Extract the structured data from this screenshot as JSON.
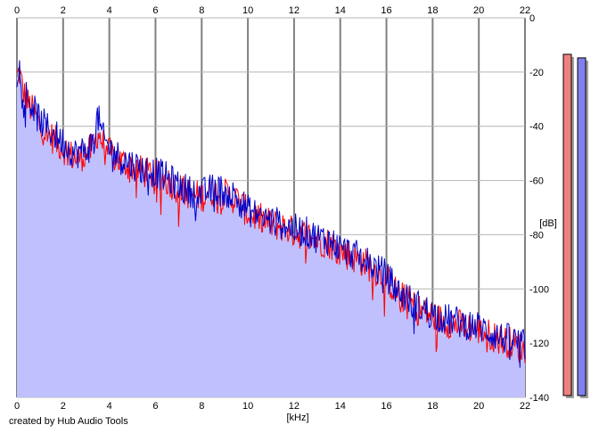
{
  "chart_data": {
    "type": "area",
    "xlabel": "[kHz]",
    "ylabel": "[dB]",
    "xlim": [
      0,
      22
    ],
    "ylim": [
      -140,
      0
    ],
    "x_ticks": [
      0,
      2,
      4,
      6,
      8,
      10,
      12,
      14,
      16,
      18,
      20,
      22
    ],
    "y_ticks": [
      0,
      -20,
      -40,
      -60,
      -80,
      -100,
      -120,
      -140
    ],
    "grid": true,
    "colors": {
      "fill": "#c0c0ff",
      "series_a": "#ff0000",
      "series_b": "#0000c8",
      "grid": "#b4b4b4",
      "grid_major": "#808080",
      "meter_a": "#f08080",
      "meter_b": "#8080f0"
    },
    "series": [
      {
        "x": [
          0,
          0.1,
          0.3,
          0.5,
          0.8,
          1.0,
          1.5,
          2.0,
          2.5,
          3.0,
          3.3,
          3.5,
          3.7,
          4.0,
          4.5,
          5.0,
          5.5,
          6.0,
          6.5,
          7.0,
          7.5,
          8.0,
          8.5,
          9.0,
          9.5,
          10.0,
          10.5,
          11.0,
          11.5,
          12.0,
          12.5,
          13.0,
          13.5,
          14.0,
          14.5,
          15.0,
          15.5,
          16.0,
          16.5,
          17.0,
          17.5,
          18.0,
          18.5,
          19.0,
          19.5,
          20.0,
          20.5,
          21.0,
          21.5,
          22.0
        ],
        "values": [
          -22,
          -20,
          -28,
          -32,
          -36,
          -40,
          -44,
          -48,
          -52,
          -50,
          -48,
          -42,
          -46,
          -50,
          -53,
          -55,
          -57,
          -58,
          -60,
          -63,
          -65,
          -66,
          -64,
          -65,
          -67,
          -72,
          -74,
          -76,
          -77,
          -79,
          -80,
          -82,
          -83,
          -86,
          -88,
          -90,
          -93,
          -96,
          -102,
          -105,
          -108,
          -110,
          -112,
          -113,
          -114,
          -115,
          -117,
          -119,
          -120,
          -123
        ]
      },
      {
        "x": [
          0,
          0.1,
          0.3,
          0.5,
          0.8,
          1.0,
          1.5,
          2.0,
          2.5,
          3.0,
          3.3,
          3.5,
          3.7,
          4.0,
          4.5,
          5.0,
          5.5,
          6.0,
          6.5,
          7.0,
          7.5,
          8.0,
          8.5,
          9.0,
          9.5,
          10.0,
          10.5,
          11.0,
          11.5,
          12.0,
          12.5,
          13.0,
          13.5,
          14.0,
          14.5,
          15.0,
          15.5,
          16.0,
          16.5,
          17.0,
          17.5,
          18.0,
          18.5,
          19.0,
          19.5,
          20.0,
          20.5,
          21.0,
          21.5,
          22.0
        ],
        "values": [
          -20,
          -18,
          -26,
          -30,
          -35,
          -38,
          -42,
          -46,
          -50,
          -49,
          -46,
          -36,
          -44,
          -48,
          -52,
          -54,
          -56,
          -57,
          -59,
          -62,
          -64,
          -65,
          -63,
          -64,
          -66,
          -71,
          -73,
          -75,
          -76,
          -78,
          -79,
          -81,
          -82,
          -85,
          -87,
          -89,
          -92,
          -95,
          -101,
          -104,
          -107,
          -109,
          -111,
          -112,
          -113,
          -114,
          -116,
          -118,
          -119,
          -121
        ]
      }
    ],
    "meters": [
      {
        "level": 0.96
      },
      {
        "level": 0.95
      }
    ]
  },
  "footer": {
    "credit": "created by Hub Audio Tools"
  }
}
